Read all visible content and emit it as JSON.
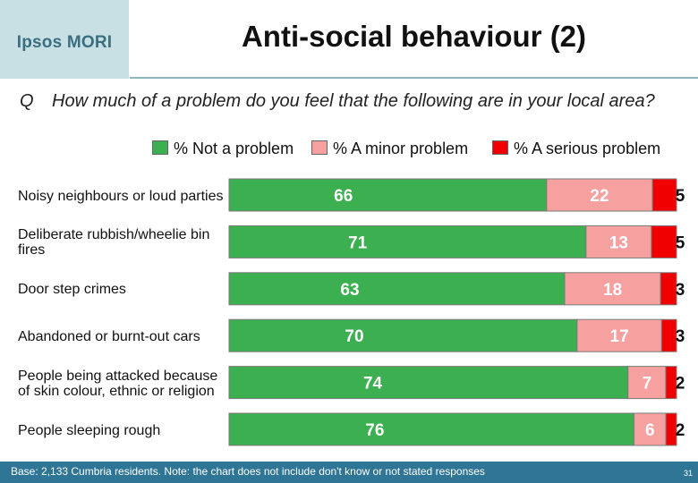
{
  "header": {
    "logo_text": "Ipsos MORI",
    "title": "Anti-social behaviour (2)"
  },
  "question": {
    "prefix": "Q",
    "text": "How much of a problem do you feel that the following are in your local area?"
  },
  "colors": {
    "not_a_problem": "#3caf50",
    "minor_problem": "#f7a0a0",
    "serious_problem": "#f00000",
    "footer": "#2f7596",
    "logo_bg": "#c8e0e4"
  },
  "chart_data": {
    "type": "bar",
    "orientation": "horizontal",
    "stacked": true,
    "normalized_to_100": true,
    "categories": [
      "Noisy neighbours or loud parties",
      "Deliberate rubbish/wheelie bin fires",
      "Door step crimes",
      "Abandoned or burnt-out cars",
      "People being attacked because of skin colour, ethnic or religion",
      "People sleeping rough"
    ],
    "series": [
      {
        "name": "% Not a problem",
        "values": [
          66,
          71,
          63,
          70,
          74,
          76
        ]
      },
      {
        "name": "% A minor problem",
        "values": [
          22,
          13,
          18,
          17,
          7,
          6
        ]
      },
      {
        "name": "% A serious problem",
        "values": [
          5,
          5,
          3,
          3,
          2,
          2
        ]
      }
    ],
    "legend_position": "top",
    "data_labels": true,
    "grid": false
  },
  "footnote": "Base: 2,133 Cumbria residents. Note: the chart does not include don't know or not stated responses",
  "page_number": "31"
}
